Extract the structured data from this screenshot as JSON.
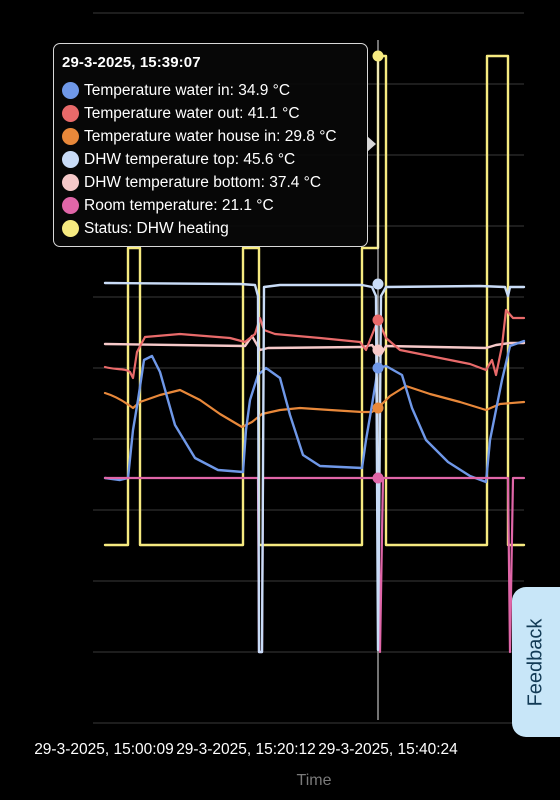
{
  "chart_data": {
    "type": "line",
    "xlabel": "Time",
    "x_ticks": [
      "29-3-2025, 15:00:09",
      "29-3-2025, 15:20:12",
      "29-3-2025, 15:40:24"
    ],
    "y_gridlines": 11,
    "series": [
      {
        "name": "Temperature water in",
        "color": "#6f98e8",
        "cursor_value": 34.9
      },
      {
        "name": "Temperature water out",
        "color": "#e86a6a",
        "cursor_value": 41.1
      },
      {
        "name": "Temperature water house in",
        "color": "#e8883a",
        "cursor_value": 29.8
      },
      {
        "name": "DHW temperature top",
        "color": "#c9dcf7",
        "cursor_value": 45.6
      },
      {
        "name": "DHW temperature bottom",
        "color": "#f6c9c9",
        "cursor_value": 37.4
      },
      {
        "name": "Room temperature",
        "color": "#e066a8",
        "cursor_value": 21.1
      },
      {
        "name": "Status",
        "color": "#f6ea80",
        "cursor_value": "DHW heating"
      }
    ]
  },
  "tooltip": {
    "title": "29-3-2025, 15:39:07",
    "rows": [
      {
        "text": "Temperature water in: 34.9 °C",
        "color": "#6f98e8"
      },
      {
        "text": "Temperature water out: 41.1 °C",
        "color": "#e86a6a"
      },
      {
        "text": "Temperature water house in: 29.8 °C",
        "color": "#e8883a"
      },
      {
        "text": "DHW temperature top: 45.6 °C",
        "color": "#c9dcf7"
      },
      {
        "text": "DHW temperature bottom: 37.4 °C",
        "color": "#f6c9c9"
      },
      {
        "text": "Room temperature: 21.1 °C",
        "color": "#e066a8"
      },
      {
        "text": "Status: DHW heating",
        "color": "#f6ea80"
      }
    ]
  },
  "feedback": {
    "label": "Feedback"
  }
}
